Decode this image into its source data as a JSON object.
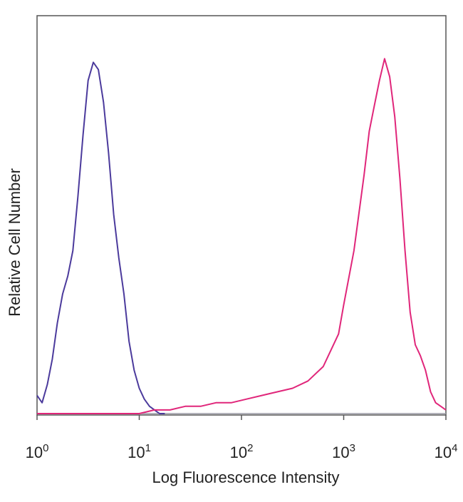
{
  "chart_data": {
    "type": "line",
    "title": "",
    "xlabel": "Log Fluorescence Intensity",
    "ylabel": "Relative Cell Number",
    "xscale": "log",
    "xlim": [
      1,
      10000
    ],
    "ylim": [
      0,
      1.0
    ],
    "x_ticks": [
      {
        "base": "10",
        "exp": "0",
        "value": 1
      },
      {
        "base": "10",
        "exp": "1",
        "value": 10
      },
      {
        "base": "10",
        "exp": "2",
        "value": 100
      },
      {
        "base": "10",
        "exp": "3",
        "value": 1000
      },
      {
        "base": "10",
        "exp": "4",
        "value": 10000
      }
    ],
    "grid": false,
    "legend": "none",
    "series": [
      {
        "color": "#4b3a9c",
        "x": [
          1.0,
          1.12,
          1.26,
          1.41,
          1.58,
          1.78,
          2.0,
          2.24,
          2.51,
          2.82,
          3.16,
          3.55,
          3.98,
          4.47,
          5.01,
          5.62,
          6.31,
          7.08,
          7.94,
          8.91,
          10.0,
          11.2,
          12.6,
          14.1,
          15.8,
          17.8
        ],
        "y": [
          0.05,
          0.03,
          0.08,
          0.15,
          0.25,
          0.33,
          0.38,
          0.45,
          0.6,
          0.77,
          0.92,
          0.97,
          0.95,
          0.86,
          0.72,
          0.55,
          0.43,
          0.33,
          0.2,
          0.12,
          0.07,
          0.04,
          0.02,
          0.01,
          0.0,
          0.0
        ]
      },
      {
        "color": "#e0267a",
        "x": [
          1.0,
          10.0,
          14.1,
          20.0,
          28.2,
          39.8,
          56.2,
          79.4,
          112,
          158,
          224,
          316,
          447,
          631,
          891,
          1000,
          1259,
          1585,
          1778,
          1995,
          2239,
          2512,
          2818,
          3162,
          3548,
          3981,
          4467,
          5012,
          5623,
          6310,
          7079,
          7943,
          8913,
          10000
        ],
        "y": [
          0.0,
          0.0,
          0.01,
          0.01,
          0.02,
          0.02,
          0.03,
          0.03,
          0.04,
          0.05,
          0.06,
          0.07,
          0.09,
          0.13,
          0.22,
          0.3,
          0.45,
          0.66,
          0.78,
          0.85,
          0.92,
          0.98,
          0.93,
          0.82,
          0.65,
          0.45,
          0.28,
          0.19,
          0.16,
          0.12,
          0.06,
          0.03,
          0.02,
          0.01
        ]
      },
      {
        "color": "#9a9aa6",
        "x": [
          1.0,
          10000
        ],
        "y": [
          0.0,
          0.0
        ]
      }
    ]
  }
}
